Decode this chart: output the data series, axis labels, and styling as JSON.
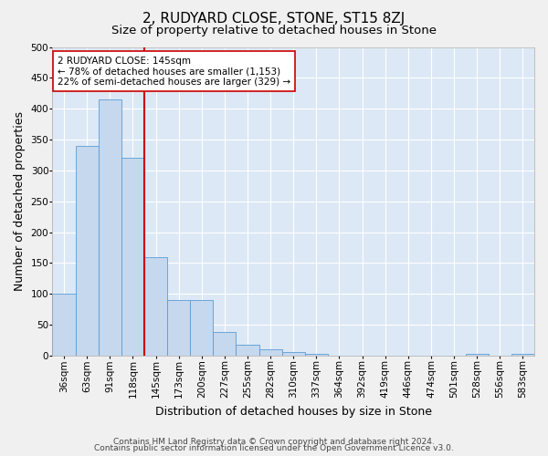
{
  "title": "2, RUDYARD CLOSE, STONE, ST15 8ZJ",
  "subtitle": "Size of property relative to detached houses in Stone",
  "xlabel": "Distribution of detached houses by size in Stone",
  "ylabel": "Number of detached properties",
  "categories": [
    "36sqm",
    "63sqm",
    "91sqm",
    "118sqm",
    "145sqm",
    "173sqm",
    "200sqm",
    "227sqm",
    "255sqm",
    "282sqm",
    "310sqm",
    "337sqm",
    "364sqm",
    "392sqm",
    "419sqm",
    "446sqm",
    "474sqm",
    "501sqm",
    "528sqm",
    "556sqm",
    "583sqm"
  ],
  "values": [
    100,
    340,
    415,
    320,
    160,
    90,
    90,
    38,
    18,
    10,
    5,
    3,
    0,
    0,
    0,
    0,
    0,
    0,
    3,
    0,
    3
  ],
  "bar_color": "#c5d8ed",
  "bar_edge_color": "#5b9bd5",
  "vline_color": "#cc0000",
  "vline_index": 4,
  "annotation_text": "2 RUDYARD CLOSE: 145sqm\n← 78% of detached houses are smaller (1,153)\n22% of semi-detached houses are larger (329) →",
  "annotation_box_facecolor": "#ffffff",
  "annotation_box_edgecolor": "#cc0000",
  "ylim": [
    0,
    500
  ],
  "yticks": [
    0,
    50,
    100,
    150,
    200,
    250,
    300,
    350,
    400,
    450,
    500
  ],
  "footer1": "Contains HM Land Registry data © Crown copyright and database right 2024.",
  "footer2": "Contains public sector information licensed under the Open Government Licence v3.0.",
  "fig_bg_color": "#f0f0f0",
  "plot_bg_color": "#dce8f5",
  "title_fontsize": 11,
  "subtitle_fontsize": 9.5,
  "ylabel_fontsize": 9,
  "xlabel_fontsize": 9,
  "tick_fontsize": 7.5,
  "annotation_fontsize": 7.5,
  "footer_fontsize": 6.5
}
